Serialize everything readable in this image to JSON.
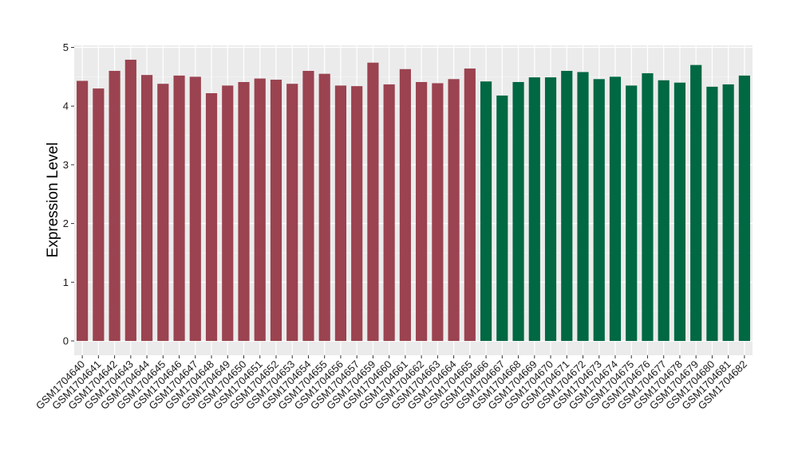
{
  "chart_data": {
    "type": "bar",
    "title": "",
    "xlabel": "",
    "ylabel": "Expression Level",
    "ylim": [
      0,
      5
    ],
    "yticks": [
      0,
      1,
      2,
      3,
      4,
      5
    ],
    "grid": true,
    "legend": "none",
    "colors": {
      "group_1": "#9b4350",
      "group_2": "#006843",
      "panel_bg": "#ebebeb",
      "grid": "#ffffff"
    },
    "categories": [
      "GSM1704640",
      "GSM1704641",
      "GSM1704642",
      "GSM1704643",
      "GSM1704644",
      "GSM1704645",
      "GSM1704646",
      "GSM1704647",
      "GSM1704648",
      "GSM1704649",
      "GSM1704650",
      "GSM1704651",
      "GSM1704652",
      "GSM1704653",
      "GSM1704654",
      "GSM1704655",
      "GSM1704656",
      "GSM1704657",
      "GSM1704659",
      "GSM1704660",
      "GSM1704661",
      "GSM1704662",
      "GSM1704663",
      "GSM1704664",
      "GSM1704665",
      "GSM1704666",
      "GSM1704667",
      "GSM1704668",
      "GSM1704669",
      "GSM1704670",
      "GSM1704671",
      "GSM1704672",
      "GSM1704673",
      "GSM1704674",
      "GSM1704675",
      "GSM1704676",
      "GSM1704677",
      "GSM1704678",
      "GSM1704679",
      "GSM1704680",
      "GSM1704681",
      "GSM1704682"
    ],
    "values": [
      4.43,
      4.3,
      4.6,
      4.79,
      4.53,
      4.38,
      4.52,
      4.5,
      4.22,
      4.35,
      4.41,
      4.47,
      4.45,
      4.38,
      4.6,
      4.55,
      4.35,
      4.34,
      4.74,
      4.37,
      4.63,
      4.41,
      4.39,
      4.46,
      4.64,
      4.42,
      4.18,
      4.41,
      4.49,
      4.49,
      4.6,
      4.58,
      4.46,
      4.5,
      4.35,
      4.56,
      4.44,
      4.4,
      4.7,
      4.33,
      4.37,
      4.52
    ],
    "groups": [
      1,
      1,
      1,
      1,
      1,
      1,
      1,
      1,
      1,
      1,
      1,
      1,
      1,
      1,
      1,
      1,
      1,
      1,
      1,
      1,
      1,
      1,
      1,
      1,
      1,
      2,
      2,
      2,
      2,
      2,
      2,
      2,
      2,
      2,
      2,
      2,
      2,
      2,
      2,
      2,
      2,
      2
    ]
  }
}
